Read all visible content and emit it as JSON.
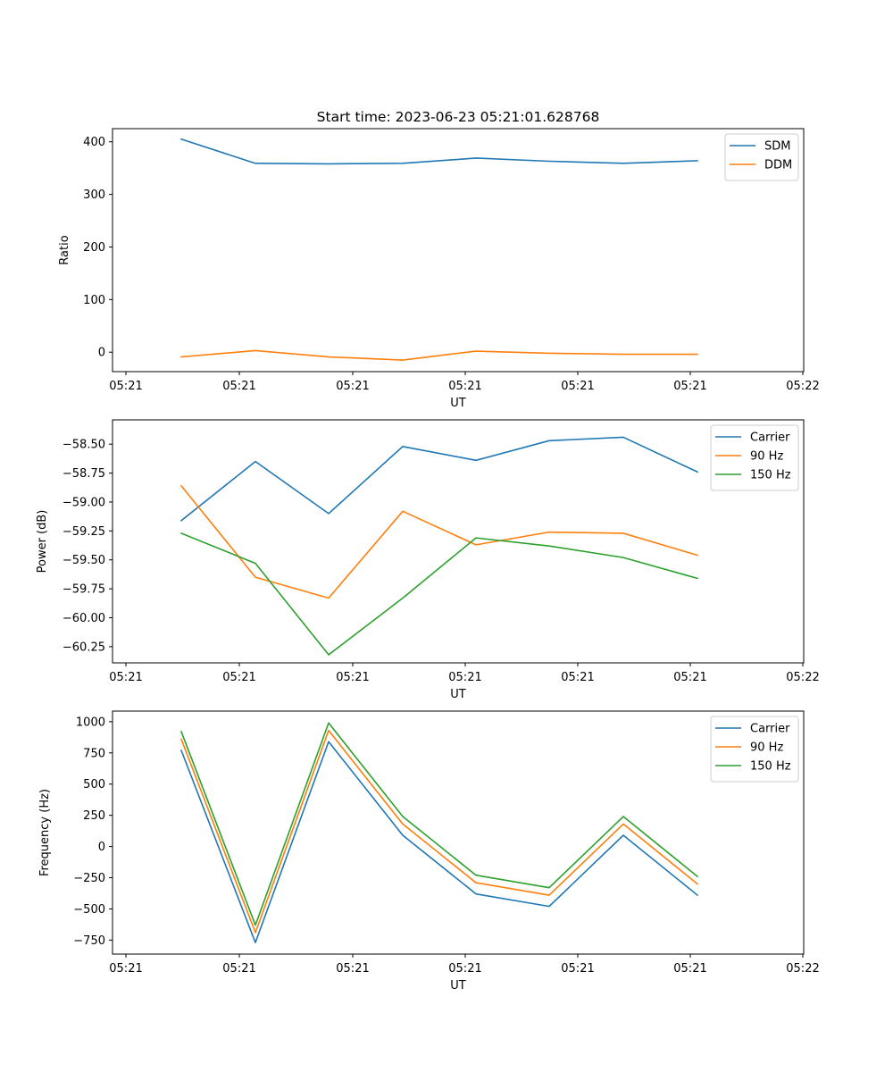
{
  "figure": {
    "title": "Start time: 2023-06-23 05:21:01.628768"
  },
  "chart_data": [
    {
      "type": "line",
      "x_tick_labels": [
        "05:21",
        "05:21",
        "05:21",
        "05:21",
        "05:21",
        "05:21",
        "05:22"
      ],
      "xlabel": "UT",
      "ylabel": "Ratio",
      "ylim": [
        -37,
        425
      ],
      "y_ticks": [
        0,
        100,
        200,
        300,
        400
      ],
      "y_tick_labels": [
        "0",
        "100",
        "200",
        "300",
        "400"
      ],
      "legend_position": "top-right",
      "series": [
        {
          "name": "SDM",
          "color": "#1f77b4",
          "values": [
            405,
            359,
            358,
            359,
            369,
            363,
            359,
            364
          ]
        },
        {
          "name": "DDM",
          "color": "#ff7f0e",
          "values": [
            -9,
            3,
            -9,
            -15,
            2,
            -2,
            -4,
            -4
          ]
        }
      ]
    },
    {
      "type": "line",
      "x_tick_labels": [
        "05:21",
        "05:21",
        "05:21",
        "05:21",
        "05:21",
        "05:21",
        "05:22"
      ],
      "xlabel": "UT",
      "ylabel": "Power (dB)",
      "ylim": [
        -60.39,
        -58.29
      ],
      "y_ticks": [
        -58.5,
        -58.75,
        -59.0,
        -59.25,
        -59.5,
        -59.75,
        -60.0,
        -60.25
      ],
      "y_tick_labels": [
        "−58.50",
        "−58.75",
        "−59.00",
        "−59.25",
        "−59.50",
        "−59.75",
        "−60.00",
        "−60.25"
      ],
      "legend_position": "top-right",
      "series": [
        {
          "name": "Carrier",
          "color": "#1f77b4",
          "values": [
            -59.16,
            -58.65,
            -59.1,
            -58.52,
            -58.64,
            -58.47,
            -58.44,
            -58.74
          ]
        },
        {
          "name": "90 Hz",
          "color": "#ff7f0e",
          "values": [
            -58.86,
            -59.65,
            -59.83,
            -59.08,
            -59.37,
            -59.26,
            -59.27,
            -59.46
          ]
        },
        {
          "name": "150 Hz",
          "color": "#2ca02c",
          "values": [
            -59.27,
            -59.53,
            -60.32,
            -59.83,
            -59.31,
            -59.38,
            -59.48,
            -59.66
          ]
        }
      ]
    },
    {
      "type": "line",
      "x_tick_labels": [
        "05:21",
        "05:21",
        "05:21",
        "05:21",
        "05:21",
        "05:21",
        "05:22"
      ],
      "xlabel": "UT",
      "ylabel": "Frequency (Hz)",
      "ylim": [
        -862,
        1085
      ],
      "y_ticks": [
        1000,
        750,
        500,
        250,
        0,
        -250,
        -500,
        -750
      ],
      "y_tick_labels": [
        "1000",
        "750",
        "500",
        "250",
        "0",
        "−250",
        "−500",
        "−750"
      ],
      "legend_position": "top-right",
      "series": [
        {
          "name": "Carrier",
          "color": "#1f77b4",
          "values": [
            770,
            -770,
            840,
            90,
            -380,
            -480,
            90,
            -390
          ]
        },
        {
          "name": "90 Hz",
          "color": "#ff7f0e",
          "values": [
            860,
            -690,
            930,
            180,
            -290,
            -390,
            180,
            -300
          ]
        },
        {
          "name": "150 Hz",
          "color": "#2ca02c",
          "values": [
            920,
            -630,
            990,
            240,
            -230,
            -330,
            240,
            -240
          ]
        }
      ]
    }
  ]
}
